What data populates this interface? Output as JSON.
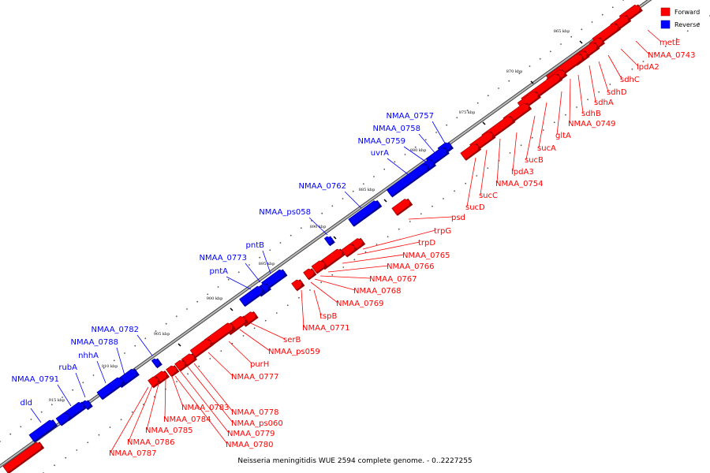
{
  "caption": "Neisseria meningitidis WUE 2594 complete genome. - 0..2227255",
  "legend": [
    {
      "label": "Forward",
      "color": "#ff0000"
    },
    {
      "label": "Reverse",
      "color": "#0000ff"
    }
  ],
  "colors": {
    "forward": "#ff0000",
    "reverse": "#0000ff",
    "backbone": "#999999",
    "tick": "#000000"
  },
  "tick_labels": [
    "865 kbp",
    "870 kbp",
    "875 kbp",
    "880 kbp",
    "885 kbp",
    "890 kbp",
    "895 kbp",
    "900 kbp",
    "905 kbp",
    "910 kbp",
    "915 kbp"
  ],
  "forward_genes": [
    "metE",
    "NMAA_0743",
    "lpdA2",
    "sdhC",
    "sdhD",
    "sdhA",
    "sdhB",
    "NMAA_0749",
    "gltA",
    "sucA",
    "sucB",
    "lpdA3",
    "NMAA_0754",
    "sucC",
    "sucD",
    "psd",
    "trpG",
    "trpD",
    "NMAA_0765",
    "NMAA_0766",
    "NMAA_0767",
    "NMAA_0768",
    "NMAA_0769",
    "tspB",
    "NMAA_0771",
    "serB",
    "NMAA_ps059",
    "purH",
    "NMAA_0777",
    "NMAA_0778",
    "NMAA_ps060",
    "NMAA_0779",
    "NMAA_0780",
    "NMAA_0783",
    "NMAA_0784",
    "NMAA_0785",
    "NMAA_0786",
    "NMAA_0787"
  ],
  "reverse_genes": [
    "NMAA_0757",
    "NMAA_0758",
    "NMAA_0759",
    "uvrA",
    "NMAA_0762",
    "NMAA_ps058",
    "pntB",
    "NMAA_0773",
    "pntA",
    "NMAA_0782",
    "NMAA_0788",
    "nhhA",
    "rubA",
    "NMAA_0791",
    "dld"
  ]
}
